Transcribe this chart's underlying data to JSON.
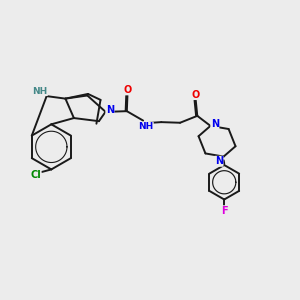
{
  "background_color": "#ececec",
  "bond_color": "#1a1a1a",
  "atom_colors": {
    "N": "#0000ee",
    "O": "#ee0000",
    "Cl": "#008800",
    "F": "#dd00dd",
    "NH": "#448888",
    "C": "#1a1a1a"
  },
  "lw": 1.4
}
